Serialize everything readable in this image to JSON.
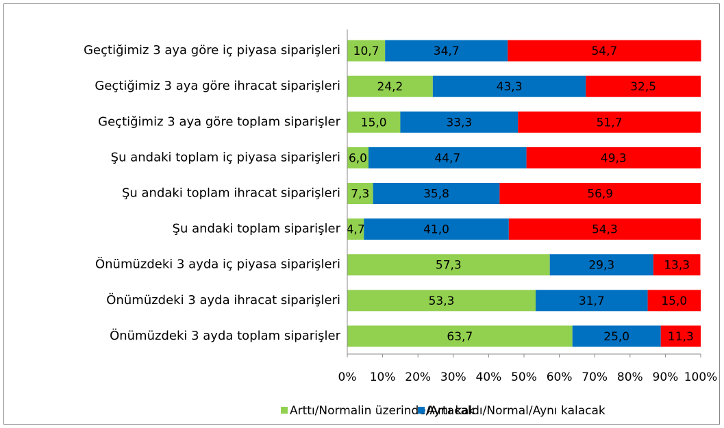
{
  "chart_data": {
    "type": "stacked_bar_horizontal",
    "categories": [
      "Geçtiğimiz 3 aya göre iç piyasa siparişleri",
      "Geçtiğimiz 3 aya göre ihracat siparişleri",
      "Geçtiğimiz 3 aya göre toplam siparişler",
      "Şu andaki toplam iç piyasa siparişleri",
      "Şu andaki toplam ihracat siparişleri",
      "Şu andaki toplam siparişler",
      "Önümüzdeki 3 ayda iç piyasa siparişleri",
      "Önümüzdeki 3 ayda ihracat siparişleri",
      "Önümüzdeki 3 ayda toplam siparişler"
    ],
    "series": [
      {
        "name": "Arttı/Normalin üzerinde/Artacak",
        "color": "#92d050",
        "values": [
          10.7,
          24.2,
          15.0,
          6.0,
          7.3,
          4.7,
          57.3,
          53.3,
          63.7
        ],
        "value_labels": [
          "10,7",
          "24,2",
          "15,0",
          "6,0",
          "7,3",
          "4,7",
          "57,3",
          "53,3",
          "63,7"
        ]
      },
      {
        "name": "Aynı kaldı/Normal/Aynı kalacak",
        "color": "#0070c0",
        "values": [
          34.7,
          43.3,
          33.3,
          44.7,
          35.8,
          41.0,
          29.3,
          31.7,
          25.0
        ],
        "value_labels": [
          "34,7",
          "43,3",
          "33,3",
          "44,7",
          "35,8",
          "41,0",
          "29,3",
          "31,7",
          "25,0"
        ]
      },
      {
        "color": "#ff0000",
        "values": [
          54.7,
          32.5,
          51.7,
          49.3,
          56.9,
          54.3,
          13.3,
          15.0,
          11.3
        ],
        "value_labels": [
          "54,7",
          "32,5",
          "51,7",
          "49,3",
          "56,9",
          "54,3",
          "13,3",
          "15,0",
          "11,3"
        ]
      }
    ],
    "xlim": [
      0,
      100
    ],
    "xticks": [
      {
        "value": 0,
        "label": "0%"
      },
      {
        "value": 10,
        "label": "10%"
      },
      {
        "value": 20,
        "label": "20%"
      },
      {
        "value": 30,
        "label": "30%"
      },
      {
        "value": 40,
        "label": "40%"
      },
      {
        "value": 50,
        "label": "50%"
      },
      {
        "value": 60,
        "label": "60%"
      },
      {
        "value": 70,
        "label": "70%"
      },
      {
        "value": 80,
        "label": "80%"
      },
      {
        "value": 90,
        "label": "90%"
      },
      {
        "value": 100,
        "label": "100%"
      }
    ]
  }
}
